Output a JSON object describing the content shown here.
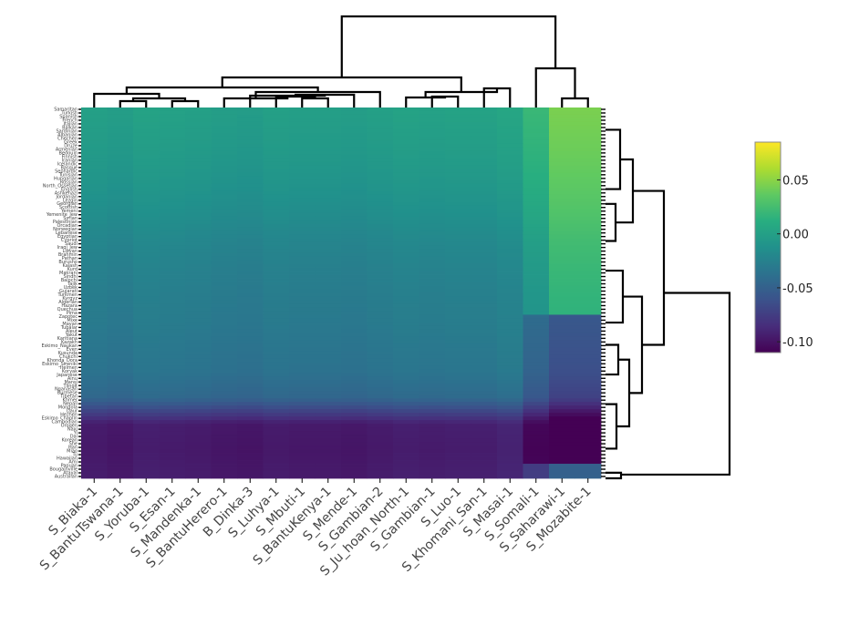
{
  "chart_data": {
    "type": "heatmap",
    "columns": [
      "S_Biaka-1",
      "S_BantuTswana-1",
      "S_Yoruba-1",
      "S_Esan-1",
      "S_Mandenka-1",
      "S_BantuHerero-1",
      "B_Dinka-3",
      "S_Luhya-1",
      "S_Mbuti-1",
      "S_BantuKenya-1",
      "S_Mende-1",
      "S_Gambian-2",
      "S_Ju_hoan_North-1",
      "S_Gambian-1",
      "S_Luo-1",
      "S_Khomani_San-1",
      "S_Masai-1",
      "S_Somali-1",
      "S_Saharawi-1",
      "S_Mozabite-1"
    ],
    "rows": [
      "Samaritan",
      "Turkish",
      "Spanish",
      "French",
      "Italian",
      "Balkan",
      "Sardinian",
      "Albanian",
      "Chechen",
      "Greek",
      "Druze",
      "Armenian",
      "Bedouin",
      "Finnish",
      "Iranian",
      "Icelandic",
      "Basque",
      "Sephardic",
      "Tunisian",
      "Hungarian",
      "Russian",
      "North_Ossetian",
      "English",
      "Ashkenazi",
      "Jordanian",
      "Lezgin",
      "Georgian",
      "Scottish",
      "Yemeni",
      "Yemenite_Jew",
      "Syrian",
      "Palestinian",
      "Orcadian",
      "Norwegian",
      "Lebanese",
      "Egyptian",
      "Cypriot",
      "Saudi",
      "Iraqi_Jew",
      "Libyan",
      "Brahmin",
      "Pathan",
      "Burusho",
      "Kalash",
      "Kurd",
      "Makrani",
      "Sindhi",
      "Balochi",
      "Tajik",
      "Uzbek",
      "Gujarati",
      "Turkmen",
      "Kyrgyz",
      "Algerian",
      "Hazara",
      "Quechua",
      "Pima",
      "Zapotec",
      "Mixe",
      "Mayan",
      "Tubalar",
      "Aleut",
      "Yakut",
      "Karitiana",
      "Kazakh",
      "Eskimo_Naukan",
      "Even",
      "Kusunda",
      "Chukchi",
      "Khonda_Dora",
      "Eskimo_Sireniki",
      "Itelmen",
      "Koryak",
      "Japanese",
      "Ainu",
      "Mansi",
      "Tlingit",
      "Nganasan",
      "Burmese",
      "Tibetan",
      "Khmer",
      "Nepali",
      "Mongola",
      "Daur",
      "Hezhen",
      "Eskimo_Chaplin",
      "Cambodian",
      "Oroqen",
      "Naxi",
      "Yi",
      "Dai",
      "Korean",
      "She",
      "Han",
      "Miao",
      "Tu",
      "Hawaiian",
      "Ami",
      "Papuan",
      "Bougainville",
      "Atayal",
      "Australian"
    ],
    "legend_ticks": [
      0.05,
      0.0,
      -0.05,
      -0.1
    ],
    "color_range": [
      -0.11,
      0.085
    ],
    "colormap": [
      "#440154",
      "#472d7b",
      "#3b528b",
      "#2c728e",
      "#21918c",
      "#28ae80",
      "#5ec962",
      "#addc30",
      "#fde725"
    ],
    "row_base_values": [
      0.0,
      -0.003,
      -0.006,
      -0.01,
      -0.015,
      -0.021,
      -0.025,
      -0.028,
      -0.03,
      -0.033,
      -0.036,
      -0.045,
      -0.095,
      -0.097,
      -0.095
    ],
    "column_offsets": [
      0.0,
      -0.002,
      0.002,
      0.001,
      0.0,
      -0.002,
      -0.003,
      0.0,
      -0.001,
      -0.001,
      -0.002,
      0.0,
      0.002,
      0.001,
      0.002,
      0.002,
      0.005,
      0.02,
      0.045,
      0.045
    ]
  }
}
